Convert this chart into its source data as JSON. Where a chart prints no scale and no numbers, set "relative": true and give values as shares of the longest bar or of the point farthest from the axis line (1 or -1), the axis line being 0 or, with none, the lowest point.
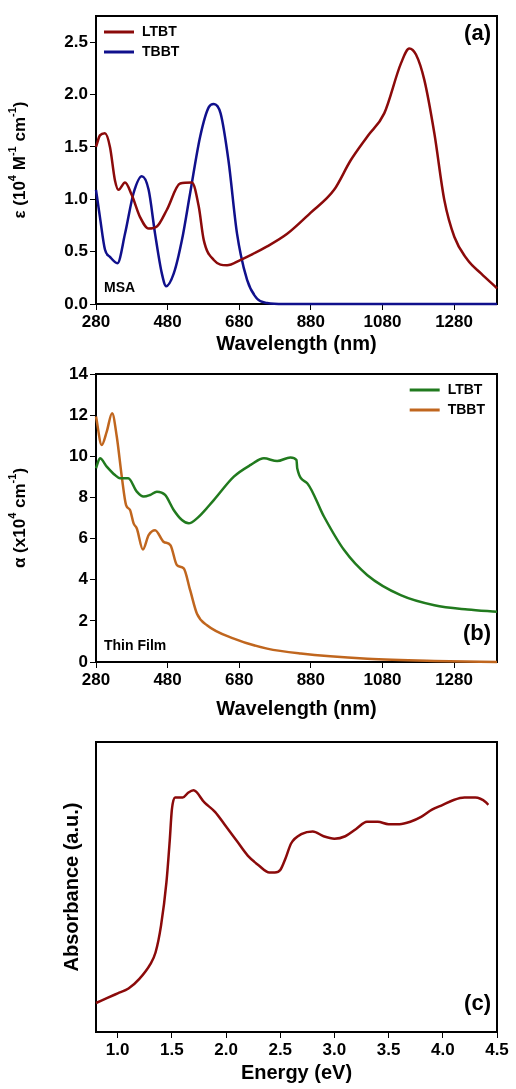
{
  "chart_data": [
    {
      "type": "line",
      "xlabel": "Wavelength (nm)",
      "ylabel": "ε (10$^{4}$ M$^{-1}$ cm$^{-1}$)",
      "xlim": [
        280,
        1400
      ],
      "xticks": [
        280,
        480,
        680,
        880,
        1080,
        1280
      ],
      "ylim": [
        0,
        2.75
      ],
      "yticks": [
        {
          "value": 0,
          "label": "0.0"
        },
        0.5,
        {
          "value": 1,
          "label": "1.0"
        },
        1.5,
        {
          "value": 2,
          "label": "2.0"
        },
        2.5
      ],
      "legend": "top left",
      "grid": false,
      "annotations": [
        "(a)",
        "MSA"
      ],
      "series": [
        {
          "name": "LTBT",
          "color": "#8b0a0a",
          "x": [
            280,
            291,
            305,
            319,
            333,
            343,
            361,
            380,
            403,
            427,
            450,
            478,
            515,
            548,
            567,
            581,
            609,
            646,
            683,
            758,
            814,
            879,
            945,
            991,
            1038,
            1085,
            1132,
            1155,
            1174,
            1197,
            1225,
            1253,
            1281,
            1318,
            1356,
            1400
          ],
          "values": [
            1.5,
            1.61,
            1.63,
            1.5,
            1.18,
            1.09,
            1.16,
            1.04,
            0.83,
            0.72,
            0.74,
            0.9,
            1.15,
            1.16,
            0.93,
            0.61,
            0.42,
            0.37,
            0.42,
            0.55,
            0.67,
            0.87,
            1.09,
            1.37,
            1.6,
            1.82,
            2.3,
            2.44,
            2.38,
            2.14,
            1.63,
            0.99,
            0.64,
            0.42,
            0.29,
            0.15
          ]
        },
        {
          "name": "TBBT",
          "color": "#10108c",
          "x": [
            280,
            291,
            305,
            319,
            340,
            361,
            385,
            408,
            427,
            445,
            464,
            476,
            497,
            520,
            543,
            571,
            595,
            609,
            628,
            650,
            674,
            702,
            730,
            758,
            805,
            1400
          ],
          "values": [
            1.09,
            0.83,
            0.52,
            0.45,
            0.39,
            0.67,
            1.06,
            1.22,
            1.09,
            0.67,
            0.29,
            0.17,
            0.29,
            0.61,
            1.06,
            1.6,
            1.88,
            1.91,
            1.82,
            1.37,
            0.67,
            0.23,
            0.05,
            0.01,
            0,
            0
          ]
        }
      ]
    },
    {
      "type": "line",
      "xlabel": "Wavelength (nm)",
      "ylabel": "α (x10$^{4}$ cm$^{-1}$)",
      "xlim": [
        280,
        1400
      ],
      "xticks": [
        280,
        480,
        680,
        880,
        1080,
        1280
      ],
      "ylim": [
        0,
        14
      ],
      "yticks": [
        0,
        2,
        4,
        6,
        8,
        10,
        12,
        14
      ],
      "legend": "top right",
      "grid": false,
      "annotations": [
        "(b)",
        "Thin Film"
      ],
      "series": [
        {
          "name": "LTBT",
          "color": "#217a1e",
          "x": [
            280,
            291,
            310,
            333,
            347,
            370,
            394,
            413,
            431,
            450,
            473,
            497,
            520,
            539,
            562,
            609,
            665,
            712,
            749,
            786,
            823,
            840,
            842,
            870,
            917,
            973,
            1038,
            1131,
            1225,
            1318,
            1400
          ],
          "values": [
            9.42,
            9.9,
            9.5,
            9.09,
            8.93,
            8.93,
            8.28,
            8.04,
            8.12,
            8.28,
            8.12,
            7.39,
            6.9,
            6.74,
            6.98,
            7.87,
            9.01,
            9.58,
            9.9,
            9.77,
            9.94,
            9.82,
            9.42,
            8.69,
            7.06,
            5.44,
            4.22,
            3.25,
            2.76,
            2.55,
            2.44
          ]
        },
        {
          "name": "TBBT",
          "color": "#c0661e",
          "x": [
            280,
            296,
            310,
            325,
            338,
            352,
            364,
            375,
            385,
            394,
            411,
            427,
            445,
            469,
            488,
            506,
            525,
            543,
            562,
            590,
            665,
            758,
            852,
            1038,
            1225,
            1400
          ],
          "values": [
            11.93,
            10.55,
            11.2,
            12.09,
            10.96,
            9.01,
            7.63,
            7.39,
            6.74,
            6.49,
            5.47,
            6.17,
            6.41,
            5.84,
            5.68,
            4.71,
            4.55,
            3.49,
            2.35,
            1.79,
            1.14,
            0.65,
            0.41,
            0.16,
            0.05,
            0
          ]
        }
      ]
    },
    {
      "type": "line",
      "xlabel": "Energy (eV)",
      "ylabel": "Absorbance (a.u.)",
      "relative": true,
      "tick_labels": "x",
      "xlim": [
        0.8,
        4.5
      ],
      "xticks": [
        {
          "value": 1,
          "label": "1.0"
        },
        1.5,
        {
          "value": 2,
          "label": "2.0"
        },
        2.5,
        {
          "value": 3,
          "label": "3.0"
        },
        3.5,
        {
          "value": 4,
          "label": "4.0"
        },
        4.5
      ],
      "grid": false,
      "annotations": [
        "(c)"
      ],
      "series": [
        {
          "color": "#8b0a0a",
          "x": [
            0.8,
            0.9,
            1.0,
            1.1,
            1.2,
            1.3,
            1.35,
            1.4,
            1.45,
            1.48,
            1.5,
            1.53,
            1.6,
            1.65,
            1.7,
            1.8,
            1.9,
            2.0,
            2.1,
            2.2,
            2.3,
            2.4,
            2.45,
            2.5,
            2.55,
            2.6,
            2.7,
            2.8,
            2.9,
            3.0,
            3.1,
            3.2,
            3.3,
            3.4,
            3.5,
            3.6,
            3.7,
            3.8,
            3.9,
            4.0,
            4.1,
            4.2,
            4.3,
            4.4,
            4.42
          ],
          "values": [
            0.12,
            0.14,
            0.16,
            0.18,
            0.22,
            0.28,
            0.33,
            0.44,
            0.62,
            0.79,
            0.92,
            0.97,
            0.97,
            0.99,
            1.0,
            0.95,
            0.91,
            0.85,
            0.79,
            0.73,
            0.69,
            0.66,
            0.66,
            0.67,
            0.72,
            0.78,
            0.82,
            0.83,
            0.81,
            0.8,
            0.81,
            0.84,
            0.87,
            0.87,
            0.86,
            0.86,
            0.87,
            0.89,
            0.92,
            0.94,
            0.96,
            0.97,
            0.97,
            0.95,
            0.94
          ]
        }
      ]
    }
  ]
}
